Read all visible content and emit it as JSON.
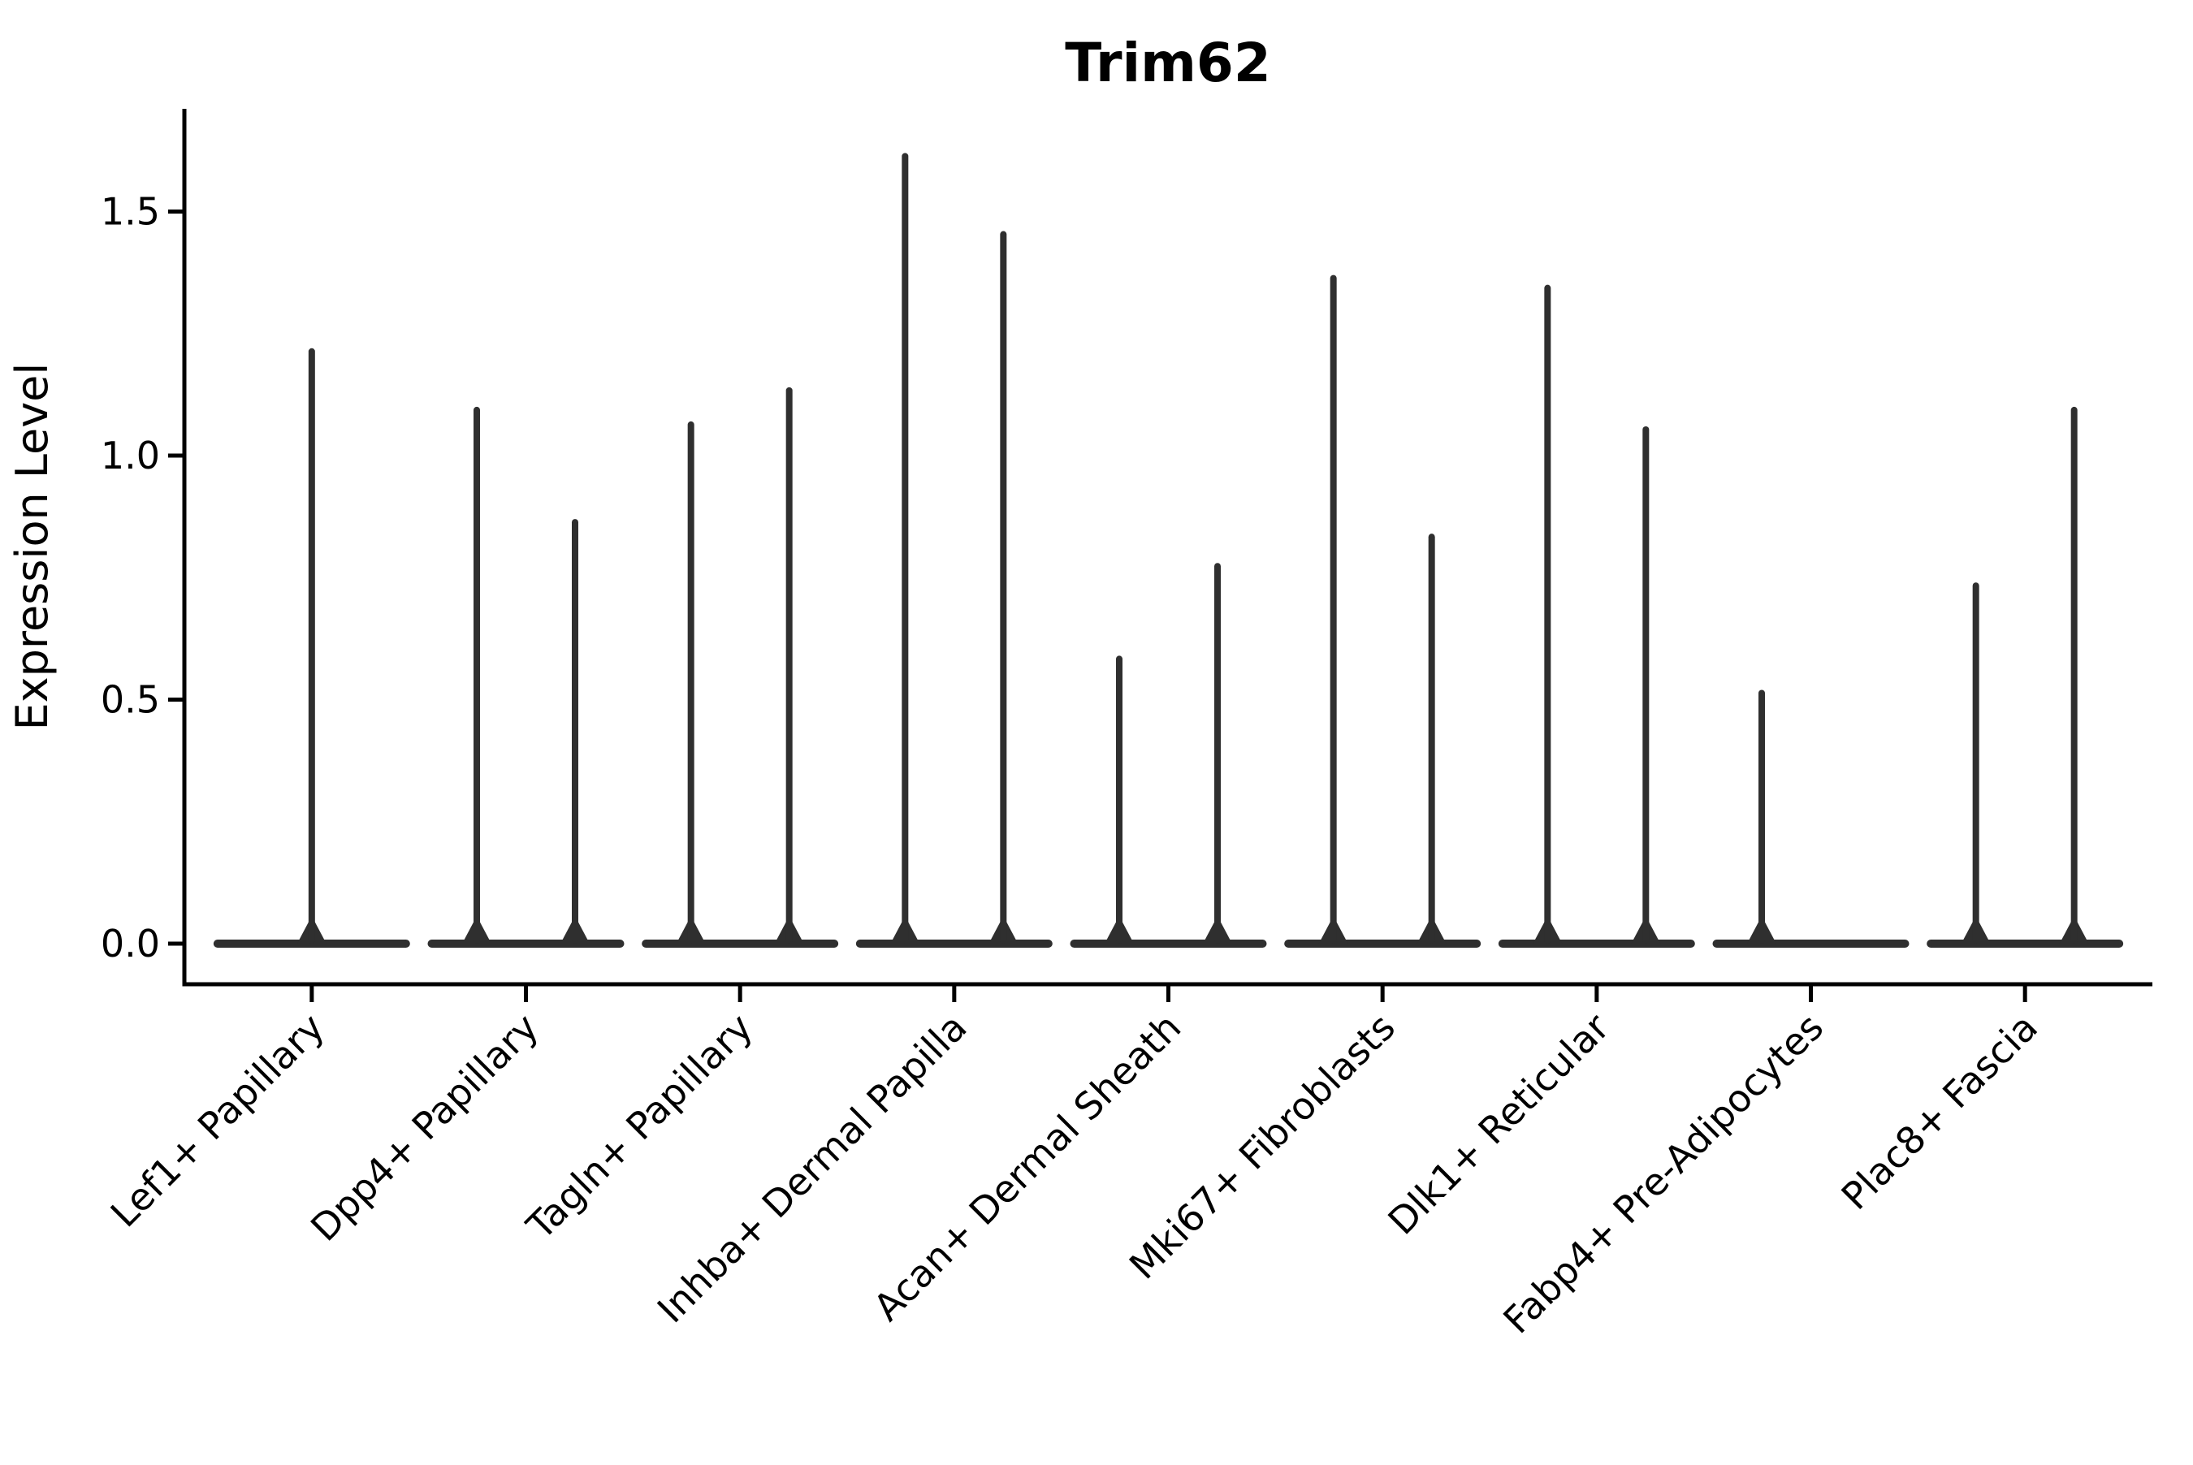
{
  "figure": {
    "background": "#ffffff"
  },
  "chart_data": {
    "type": "violin",
    "title": "Trim62",
    "xlabel": "",
    "ylabel": "Expression Level",
    "y_ticks": [
      0.0,
      0.5,
      1.0,
      1.5
    ],
    "y_tick_labels": [
      "0.0",
      "0.5",
      "1.0",
      "1.5"
    ],
    "ylim": [
      -0.09,
      1.71
    ],
    "grid": false,
    "legend": "none",
    "style": {
      "violin_color": "#2f2f2f",
      "axis_color": "#000000",
      "background": "#ffffff"
    },
    "categories": [
      "Lef1+ Papillary",
      "Dpp4+ Papillary",
      "Tagln+ Papillary",
      "Inhba+ Dermal Papilla",
      "Acan+ Dermal Sheath",
      "Mki67+ Fibroblasts",
      "Dlk1+ Reticular",
      "Fabp4+ Pre-Adipocytes",
      "Plac8+ Fascia"
    ],
    "violins": [
      {
        "category": "Lef1+ Papillary",
        "tail_maxima": [
          1.22
        ]
      },
      {
        "category": "Dpp4+ Papillary",
        "tail_maxima": [
          1.1,
          0.87
        ]
      },
      {
        "category": "Tagln+ Papillary",
        "tail_maxima": [
          1.07,
          1.14
        ]
      },
      {
        "category": "Inhba+ Dermal Papilla",
        "tail_maxima": [
          1.62,
          1.46
        ]
      },
      {
        "category": "Acan+ Dermal Sheath",
        "tail_maxima": [
          0.59,
          0.78
        ]
      },
      {
        "category": "Mki67+ Fibroblasts",
        "tail_maxima": [
          1.37,
          0.84
        ]
      },
      {
        "category": "Dlk1+ Reticular",
        "tail_maxima": [
          1.35,
          1.06
        ]
      },
      {
        "category": "Fabp4+ Pre-Adipocytes",
        "tail_maxima": [
          0.52,
          0.0
        ]
      },
      {
        "category": "Plac8+ Fascia",
        "tail_maxima": [
          0.74,
          1.1
        ]
      }
    ],
    "note": "Each violin is collapsed at expression 0 (bulk of cells) with a thin tail rising to the listed maximum; a 0.0 tail means a flat violin with no spike."
  }
}
